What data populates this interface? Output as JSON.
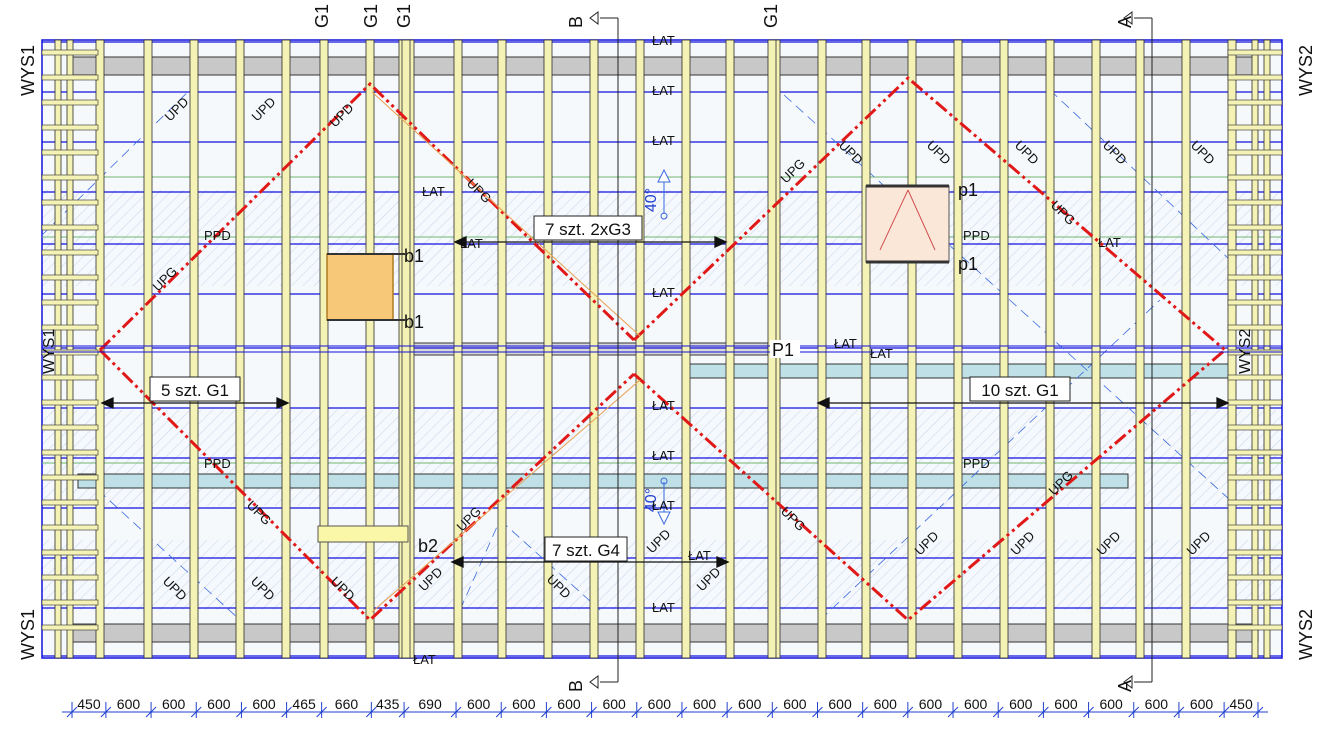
{
  "colors": {
    "rafter_fill": "#f4f2b4",
    "rafter_stroke": "#2c2c2c",
    "batten": "#1010dd",
    "membrane_green": "#6fb86f",
    "hatch": "#c7d6ea",
    "bg_tint": "#f5f8fc",
    "valley_red": "#e11818",
    "thin_blue": "#3a6ae0",
    "grey_beam": "#c8c8c8",
    "blue_beam": "#bfe0e6",
    "orange_window": "#f6c878",
    "yellow_beam": "#fbf7a8"
  },
  "labels": {
    "wys_tl": "WYS1",
    "wys_bl": "WYS1",
    "wys_tr": "WYS2",
    "wys_br": "WYS2",
    "wys_ml": "WYS1",
    "wys_mr": "WYS2",
    "g1_a": "G1",
    "g1_b": "G1",
    "g1_c": "G1",
    "g1_d": "G1",
    "section_b_top": "B",
    "section_b_bottom": "B",
    "section_a_top": "A",
    "section_a_bottom": "A",
    "p1_ridge": "P1",
    "angle_top": "40°",
    "angle_bottom": "40°",
    "p1_a": "p1",
    "p1_b": "p1",
    "b1_a": "b1",
    "b1_b": "b1",
    "b2": "b2"
  },
  "callouts": {
    "top_center": "7 szt. 2xG3",
    "left": "5 szt. G1",
    "right": "10 szt. G1",
    "bottom_center": "7 szt. G4"
  },
  "membrane_labels": {
    "ppd": "PPD",
    "upd": "UPD",
    "upg": "UPG",
    "lat": "ŁAT"
  },
  "dimensions": [
    "450",
    "600",
    "600",
    "600",
    "600",
    "465",
    "660",
    "435",
    "690",
    "600",
    "600",
    "600",
    "600",
    "600",
    "600",
    "600",
    "600",
    "600",
    "600",
    "600",
    "600",
    "600",
    "600",
    "600",
    "600",
    "600",
    "450"
  ]
}
